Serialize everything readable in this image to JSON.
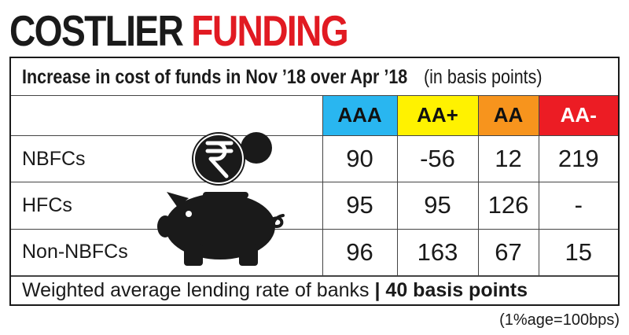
{
  "title": {
    "word1": "COSTLIER",
    "word2": "FUNDING"
  },
  "subtitle": {
    "bold": "Increase in cost of funds in Nov ’18 over Apr ’18",
    "normal": "(in basis points)"
  },
  "colors": {
    "title_red": "#e11a22",
    "AAA": "#29b6f0",
    "AA+": "#fff200",
    "AA": "#f7941d",
    "AA-": "#ec1c24"
  },
  "icon": "piggy-bank-rupee-coin-icon",
  "chart_data": {
    "type": "table",
    "columns": [
      "AAA",
      "AA+",
      "AA",
      "AA-"
    ],
    "rows": [
      {
        "label": "NBFCs",
        "values": [
          "90",
          "-56",
          "12",
          "219"
        ]
      },
      {
        "label": "HFCs",
        "values": [
          "95",
          "95",
          "126",
          "-"
        ]
      },
      {
        "label": "Non-NBFCs",
        "values": [
          "96",
          "163",
          "67",
          "15"
        ]
      }
    ],
    "footer": {
      "text": "Weighted average lending rate of banks",
      "separator": "|",
      "value": "40 basis points"
    },
    "note": "(1%age=100bps)"
  }
}
